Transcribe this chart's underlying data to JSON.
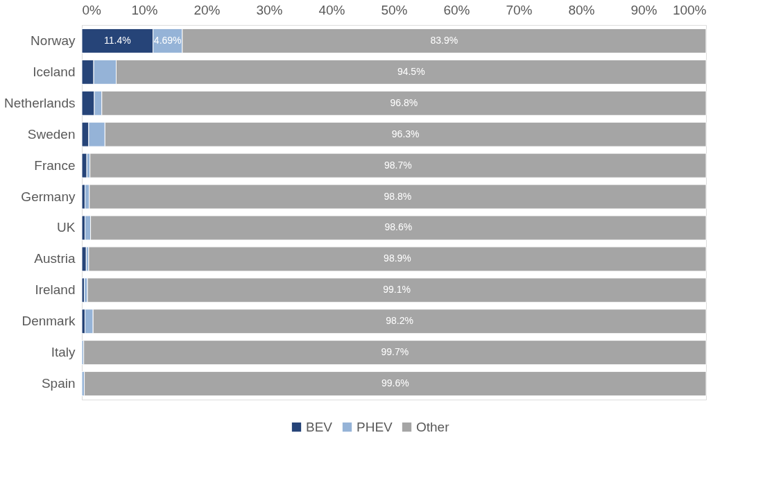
{
  "chart_data": {
    "type": "bar",
    "orientation": "horizontal",
    "stacked": true,
    "legend": "bottom",
    "grid": false,
    "categories": [
      "Norway",
      "Iceland",
      "Netherlands",
      "Sweden",
      "France",
      "Germany",
      "UK",
      "Austria",
      "Ireland",
      "Denmark",
      "Italy",
      "Spain"
    ],
    "xlim": [
      0,
      100
    ],
    "xticks": [
      {
        "value": 0,
        "label": "0%"
      },
      {
        "value": 10,
        "label": "10%"
      },
      {
        "value": 20,
        "label": "20%"
      },
      {
        "value": 30,
        "label": "30%"
      },
      {
        "value": 40,
        "label": "40%"
      },
      {
        "value": 50,
        "label": "50%"
      },
      {
        "value": 60,
        "label": "60%"
      },
      {
        "value": 70,
        "label": "70%"
      },
      {
        "value": 80,
        "label": "80%"
      },
      {
        "value": 90,
        "label": "90%"
      },
      {
        "value": 100,
        "label": "100%"
      }
    ],
    "series": [
      {
        "name": "BEV",
        "color": "#264478",
        "values": [
          11.4,
          1.9,
          2.0,
          1.1,
          0.8,
          0.5,
          0.5,
          0.7,
          0.4,
          0.5,
          null,
          null
        ],
        "value_labels": [
          "11.4%",
          null,
          null,
          null,
          null,
          null,
          null,
          null,
          null,
          null,
          null,
          null
        ]
      },
      {
        "name": "PHEV",
        "color": "#95b3d7",
        "values": [
          4.69,
          3.6,
          1.2,
          2.6,
          0.5,
          0.7,
          0.9,
          0.4,
          0.5,
          1.3,
          0.3,
          0.4
        ],
        "value_labels": [
          "4.69%",
          null,
          null,
          null,
          null,
          null,
          null,
          null,
          null,
          null,
          null,
          null
        ]
      },
      {
        "name": "Other",
        "color": "#a5a5a5",
        "values": [
          83.9,
          94.5,
          96.8,
          96.3,
          98.7,
          98.8,
          98.6,
          98.9,
          99.1,
          98.2,
          99.7,
          99.6
        ],
        "value_labels": [
          "83.9%",
          "94.5%",
          "96.8%",
          "96.3%",
          "98.7%",
          "98.8%",
          "98.6%",
          "98.9%",
          "99.1%",
          "98.2%",
          "99.7%",
          "99.6%"
        ]
      }
    ]
  }
}
